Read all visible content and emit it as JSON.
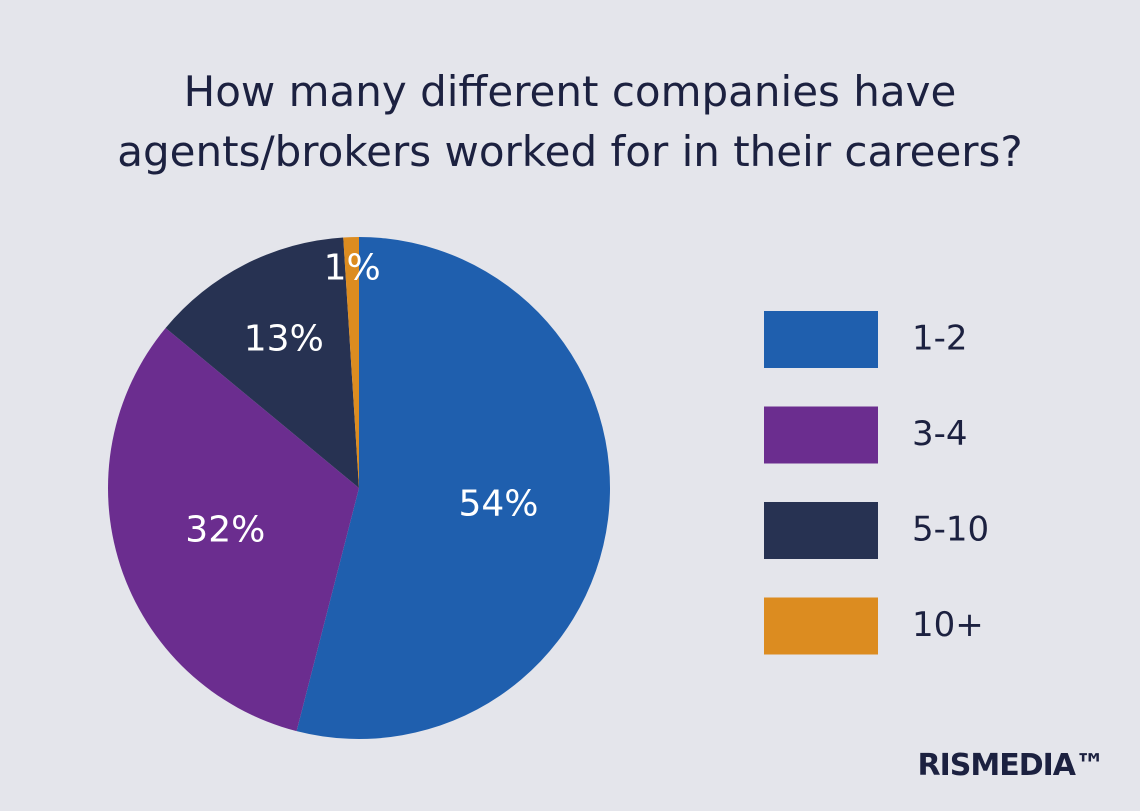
{
  "chart_data": {
    "type": "pie",
    "title": "How many different companies have agents/brokers worked for in their careers?",
    "categories": [
      "1-2",
      "3-4",
      "5-10",
      "10+"
    ],
    "values": [
      54,
      32,
      13,
      1
    ],
    "value_labels": [
      "54%",
      "32%",
      "13%",
      "1%"
    ],
    "colors": [
      "#1f5fae",
      "#6b2d8f",
      "#273252",
      "#dc8c20"
    ],
    "legend": "right"
  },
  "logo": "RISMEDIA™"
}
